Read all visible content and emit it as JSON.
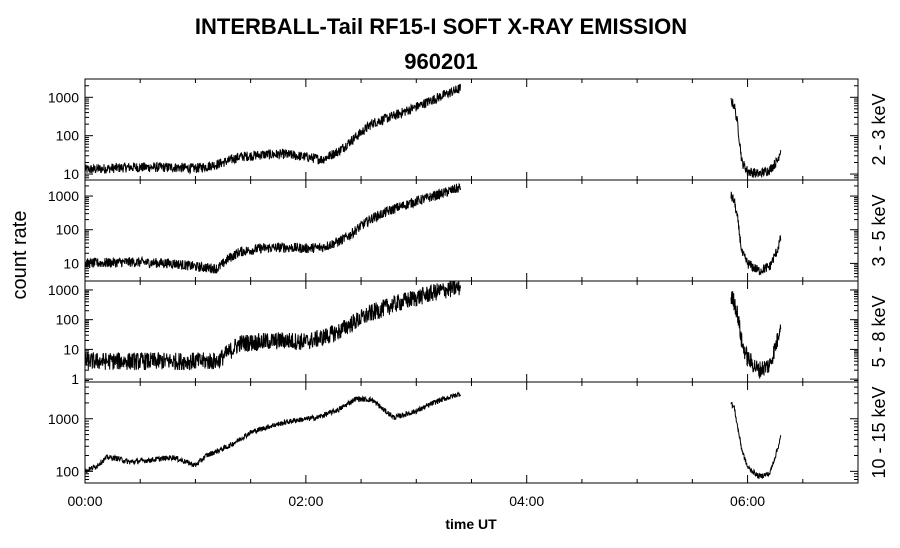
{
  "chart_data": {
    "type": "line",
    "title": "INTERBALL-Tail RF15-I SOFT X-RAY EMISSION",
    "subtitle": "960201",
    "xlabel": "time UT",
    "ylabel": "count rate",
    "x_unit": "hours UT",
    "xlim": [
      0,
      7
    ],
    "x_ticks": [
      {
        "value": 0,
        "label": "00:00"
      },
      {
        "value": 2,
        "label": "02:00"
      },
      {
        "value": 4,
        "label": "04:00"
      },
      {
        "value": 6,
        "label": "06:00"
      }
    ],
    "y_scale": "log",
    "grid": false,
    "legend": "none",
    "panels": [
      {
        "band": "2 - 3 keV",
        "ylim": [
          7,
          3000
        ],
        "y_ticks": [
          {
            "value": 10,
            "label": "10"
          },
          {
            "value": 100,
            "label": "100"
          },
          {
            "value": 1000,
            "label": "1000"
          }
        ],
        "noise": 0.13,
        "segments": [
          {
            "x": [
              0.0,
              0.4,
              0.8,
              1.0,
              1.2,
              1.4,
              1.6,
              1.8,
              2.0,
              2.15,
              2.3,
              2.4,
              2.5,
              2.6,
              2.8,
              3.0,
              3.2,
              3.4
            ],
            "y": [
              13,
              15,
              15,
              14,
              18,
              28,
              32,
              33,
              28,
              24,
              40,
              70,
              120,
              210,
              330,
              560,
              1000,
              1700
            ]
          },
          {
            "x": [
              5.85,
              5.88,
              5.91,
              5.95,
              6.0,
              6.1,
              6.2,
              6.27,
              6.3
            ],
            "y": [
              800,
              600,
              200,
              20,
              12,
              10,
              13,
              22,
              45
            ]
          }
        ]
      },
      {
        "band": "3 - 5 keV",
        "ylim": [
          3,
          3000
        ],
        "y_ticks": [
          {
            "value": 10,
            "label": "10"
          },
          {
            "value": 100,
            "label": "100"
          },
          {
            "value": 1000,
            "label": "1000"
          }
        ],
        "noise": 0.15,
        "segments": [
          {
            "x": [
              0.0,
              0.4,
              0.8,
              1.0,
              1.2,
              1.3,
              1.4,
              1.6,
              1.8,
              2.0,
              2.15,
              2.3,
              2.4,
              2.5,
              2.6,
              2.8,
              3.0,
              3.2,
              3.4
            ],
            "y": [
              10,
              11,
              10,
              8,
              7,
              14,
              22,
              28,
              30,
              28,
              30,
              45,
              70,
              130,
              220,
              420,
              700,
              1100,
              1800
            ]
          },
          {
            "x": [
              5.85,
              5.88,
              5.91,
              5.95,
              6.0,
              6.1,
              6.2,
              6.27,
              6.3
            ],
            "y": [
              1000,
              700,
              200,
              20,
              10,
              6,
              8,
              25,
              55
            ]
          }
        ]
      },
      {
        "band": "5 - 8 keV",
        "ylim": [
          0.8,
          2000
        ],
        "y_ticks": [
          {
            "value": 1,
            "label": "1"
          },
          {
            "value": 10,
            "label": "10"
          },
          {
            "value": 100,
            "label": "100"
          },
          {
            "value": 1000,
            "label": "1000"
          }
        ],
        "noise": 0.3,
        "segments": [
          {
            "x": [
              0.0,
              0.4,
              0.8,
              1.0,
              1.2,
              1.3,
              1.4,
              1.6,
              1.8,
              2.0,
              2.15,
              2.3,
              2.4,
              2.5,
              2.6,
              2.8,
              3.0,
              3.2,
              3.4
            ],
            "y": [
              4,
              4,
              4,
              4,
              4,
              8,
              16,
              18,
              20,
              18,
              25,
              40,
              70,
              110,
              170,
              330,
              550,
              900,
              1250
            ]
          },
          {
            "x": [
              5.85,
              5.88,
              5.91,
              5.95,
              6.0,
              6.1,
              6.2,
              6.27,
              6.3
            ],
            "y": [
              600,
              400,
              150,
              15,
              5,
              2,
              3,
              20,
              90
            ]
          }
        ]
      },
      {
        "band": "10 - 15 keV",
        "ylim": [
          60,
          5000
        ],
        "y_ticks": [
          {
            "value": 100,
            "label": "100"
          },
          {
            "value": 1000,
            "label": "1000"
          }
        ],
        "noise": 0.05,
        "segments": [
          {
            "x": [
              0.0,
              0.1,
              0.2,
              0.3,
              0.4,
              0.6,
              0.8,
              1.0,
              1.1,
              1.3,
              1.5,
              1.7,
              1.9,
              2.1,
              2.3,
              2.45,
              2.6,
              2.7,
              2.8,
              3.0,
              3.2,
              3.4
            ],
            "y": [
              100,
              125,
              185,
              175,
              150,
              165,
              185,
              130,
              200,
              300,
              550,
              750,
              930,
              1050,
              1500,
              2400,
              2300,
              1500,
              1050,
              1400,
              2200,
              3000
            ]
          },
          {
            "x": [
              5.85,
              5.88,
              5.91,
              5.95,
              6.0,
              6.1,
              6.2,
              6.27,
              6.3
            ],
            "y": [
              2000,
              1600,
              700,
              250,
              120,
              80,
              90,
              260,
              450
            ]
          }
        ]
      }
    ]
  }
}
